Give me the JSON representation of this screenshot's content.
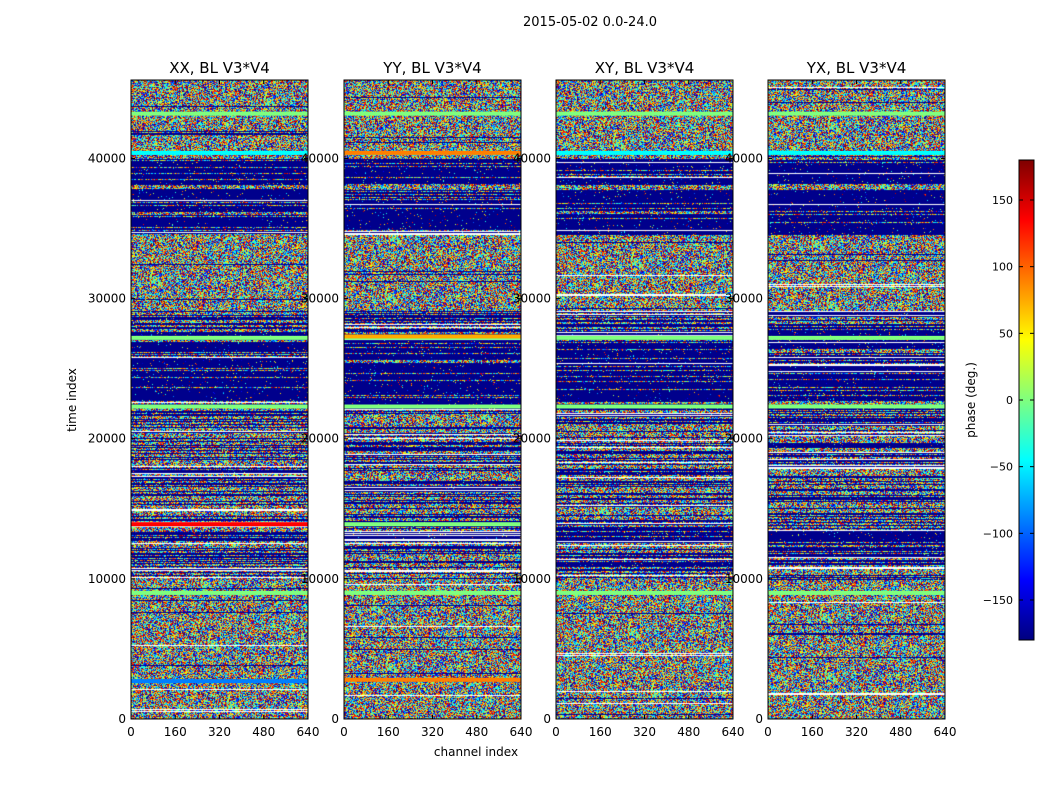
{
  "chart_data": {
    "type": "heatmap",
    "suptitle": "2015-05-02 0.0-24.0",
    "xlabel": "channel index",
    "ylabel": "time index",
    "xlim": [
      0,
      640
    ],
    "ylim": [
      0,
      45600
    ],
    "xticks": [
      0,
      160,
      320,
      480,
      640
    ],
    "yticks": [
      0,
      10000,
      20000,
      30000,
      40000
    ],
    "colorbar": {
      "label": "phase (deg.)",
      "range": [
        -180,
        180
      ],
      "ticks": [
        150,
        100,
        50,
        0,
        -50,
        -100,
        -150
      ],
      "tick_labels": [
        "150",
        "100",
        "50",
        "0",
        "−50",
        "−100",
        "−150"
      ],
      "colormap": "jet",
      "colors": [
        "#00007f",
        "#0000ff",
        "#007fff",
        "#00ffff",
        "#7fff7f",
        "#ffff00",
        "#ff7f00",
        "#ff0000",
        "#7f0000"
      ]
    },
    "panels": [
      {
        "title": "XX, BL V3*V4",
        "pol": "XX",
        "shared_ylabel": true
      },
      {
        "title": "YY, BL V3*V4",
        "pol": "YY"
      },
      {
        "title": "XY, BL V3*V4",
        "pol": "XY"
      },
      {
        "title": "YX, BL V3*V4",
        "pol": "YX"
      }
    ],
    "bands": {
      "flagged_low": [
        [
          25000,
          27000
        ],
        [
          22700,
          25000
        ],
        [
          34600,
          37800
        ],
        [
          12800,
          13400
        ],
        [
          38200,
          40000
        ]
      ],
      "solid_lines": [
        {
          "pol": "all",
          "t": 43200,
          "color": "#7fff7f"
        },
        {
          "pol": "all",
          "t": 40400,
          "color": "#00ffff"
        },
        {
          "pol": "YY",
          "t": 40400,
          "color": "#ff7f00"
        },
        {
          "pol": "all",
          "t": 27200,
          "color": "#7fff7f"
        },
        {
          "pol": "YY",
          "t": 27300,
          "color": "#ffaa00"
        },
        {
          "pol": "all",
          "t": 22300,
          "color": "#7fff7f"
        },
        {
          "pol": "XX",
          "t": 13900,
          "color": "#ff0000"
        },
        {
          "pol": "YY",
          "t": 13900,
          "color": "#7fff7f"
        },
        {
          "pol": "all",
          "t": 9000,
          "color": "#7fff7f"
        },
        {
          "pol": "XX",
          "t": 2700,
          "color": "#007fff"
        },
        {
          "pol": "YY",
          "t": 2800,
          "color": "#ff7f00"
        }
      ]
    }
  }
}
